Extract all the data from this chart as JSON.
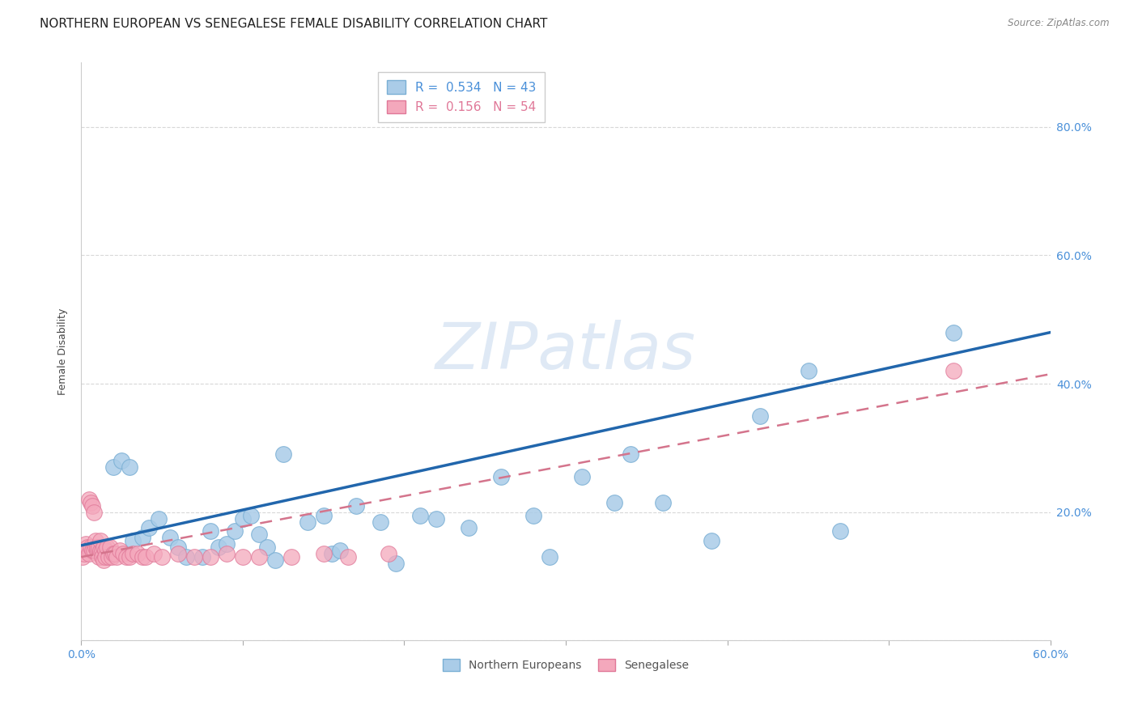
{
  "title": "NORTHERN EUROPEAN VS SENEGALESE FEMALE DISABILITY CORRELATION CHART",
  "source": "Source: ZipAtlas.com",
  "ylabel": "Female Disability",
  "watermark": "ZIPatlas",
  "xlim": [
    0.0,
    0.6
  ],
  "ylim": [
    0.0,
    0.9
  ],
  "xticks": [
    0.0,
    0.1,
    0.2,
    0.3,
    0.4,
    0.5,
    0.6
  ],
  "yticks": [
    0.0,
    0.2,
    0.4,
    0.6,
    0.8
  ],
  "xticklabels": [
    "0.0%",
    "",
    "",
    "",
    "",
    "",
    "60.0%"
  ],
  "yticklabels": [
    "",
    "20.0%",
    "40.0%",
    "60.0%",
    "80.0%"
  ],
  "ne_color": "#aacce8",
  "ne_edge_color": "#7aafd4",
  "sn_color": "#f4a8bc",
  "sn_edge_color": "#e07898",
  "trend_ne_color": "#2166ac",
  "trend_sn_color": "#d4748c",
  "background_color": "#ffffff",
  "grid_color": "#d8d8d8",
  "tick_color": "#4a90d9",
  "title_fontsize": 11,
  "axis_label_fontsize": 9,
  "tick_fontsize": 10,
  "legend_fontsize": 11,
  "ne_R": "0.534",
  "ne_N": "43",
  "sn_R": "0.156",
  "sn_N": "54",
  "northern_european_x": [
    0.02,
    0.025,
    0.03,
    0.032,
    0.038,
    0.042,
    0.048,
    0.055,
    0.06,
    0.065,
    0.075,
    0.08,
    0.085,
    0.09,
    0.095,
    0.1,
    0.105,
    0.11,
    0.115,
    0.12,
    0.125,
    0.14,
    0.15,
    0.155,
    0.16,
    0.17,
    0.185,
    0.195,
    0.21,
    0.22,
    0.24,
    0.26,
    0.28,
    0.29,
    0.31,
    0.33,
    0.34,
    0.36,
    0.39,
    0.42,
    0.45,
    0.47,
    0.54
  ],
  "northern_european_y": [
    0.27,
    0.28,
    0.27,
    0.155,
    0.16,
    0.175,
    0.19,
    0.16,
    0.145,
    0.13,
    0.13,
    0.17,
    0.145,
    0.15,
    0.17,
    0.19,
    0.195,
    0.165,
    0.145,
    0.125,
    0.29,
    0.185,
    0.195,
    0.135,
    0.14,
    0.21,
    0.185,
    0.12,
    0.195,
    0.19,
    0.175,
    0.255,
    0.195,
    0.13,
    0.255,
    0.215,
    0.29,
    0.215,
    0.155,
    0.35,
    0.42,
    0.17,
    0.48
  ],
  "senegalese_x": [
    0.001,
    0.002,
    0.003,
    0.004,
    0.005,
    0.005,
    0.006,
    0.006,
    0.007,
    0.007,
    0.008,
    0.008,
    0.009,
    0.009,
    0.01,
    0.01,
    0.011,
    0.011,
    0.012,
    0.012,
    0.013,
    0.013,
    0.014,
    0.014,
    0.015,
    0.015,
    0.016,
    0.017,
    0.018,
    0.019,
    0.02,
    0.021,
    0.022,
    0.024,
    0.026,
    0.028,
    0.03,
    0.032,
    0.035,
    0.038,
    0.04,
    0.045,
    0.05,
    0.06,
    0.07,
    0.08,
    0.09,
    0.1,
    0.11,
    0.13,
    0.15,
    0.165,
    0.19,
    0.54
  ],
  "senegalese_y": [
    0.13,
    0.135,
    0.15,
    0.145,
    0.135,
    0.22,
    0.145,
    0.215,
    0.14,
    0.21,
    0.14,
    0.2,
    0.145,
    0.155,
    0.14,
    0.145,
    0.145,
    0.13,
    0.14,
    0.155,
    0.14,
    0.13,
    0.145,
    0.125,
    0.14,
    0.13,
    0.145,
    0.13,
    0.145,
    0.13,
    0.135,
    0.135,
    0.13,
    0.14,
    0.135,
    0.13,
    0.13,
    0.135,
    0.135,
    0.13,
    0.13,
    0.135,
    0.13,
    0.135,
    0.13,
    0.13,
    0.135,
    0.13,
    0.13,
    0.13,
    0.135,
    0.13,
    0.135,
    0.42
  ],
  "ne_trend_x": [
    0.0,
    0.6
  ],
  "ne_trend_y": [
    0.148,
    0.48
  ],
  "sn_trend_x": [
    0.0,
    0.6
  ],
  "sn_trend_y": [
    0.13,
    0.415
  ]
}
